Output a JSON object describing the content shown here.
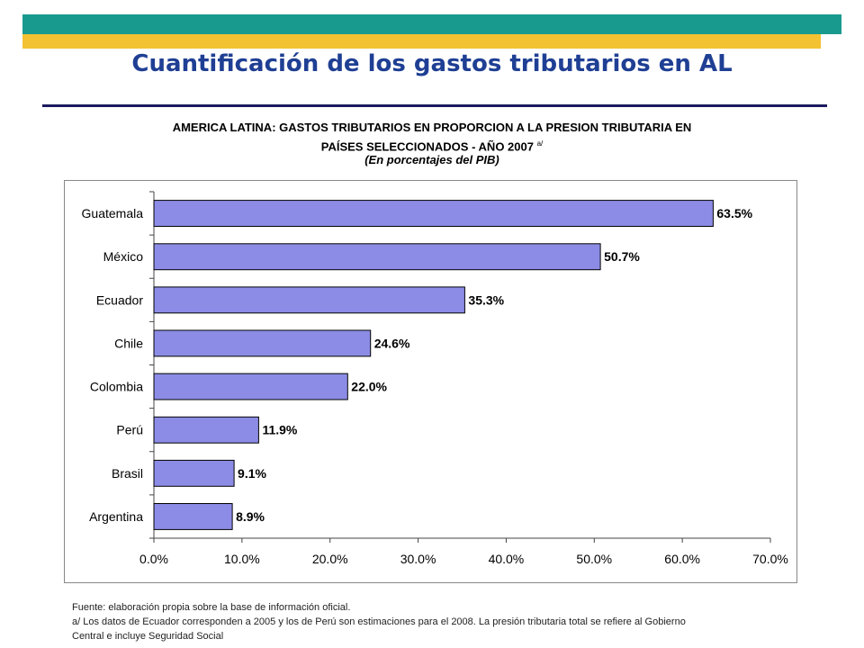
{
  "slide": {
    "title": "Cuantificación de los gastos tributarios en AL",
    "colors": {
      "band_teal": "#199a8e",
      "band_gold": "#f2c232",
      "title": "#1f3f94",
      "rule": "#1a1a5e"
    }
  },
  "chart_heading": {
    "line1": "AMERICA LATINA: GASTOS TRIBUTARIOS EN PROPORCION A LA PRESION TRIBUTARIA EN",
    "line2": "PAÍSES SELECCIONADOS - AÑO 2007",
    "line2_note": "a/",
    "line3": "(En porcentajes del PIB)"
  },
  "chart_data": {
    "type": "bar",
    "orientation": "horizontal",
    "categories": [
      "Guatemala",
      "México",
      "Ecuador",
      "Chile",
      "Colombia",
      "Perú",
      "Brasil",
      "Argentina"
    ],
    "values": [
      63.5,
      50.7,
      35.3,
      24.6,
      22.0,
      11.9,
      9.1,
      8.9
    ],
    "data_labels": [
      "63.5%",
      "50.7%",
      "35.3%",
      "24.6%",
      "22.0%",
      "11.9%",
      "9.1%",
      "8.9%"
    ],
    "xlim": [
      0,
      70
    ],
    "xticks": [
      "0.0%",
      "10.0%",
      "20.0%",
      "30.0%",
      "40.0%",
      "50.0%",
      "60.0%",
      "70.0%"
    ],
    "grid": false,
    "legend": "none",
    "bar_color": "#8c8ce6"
  },
  "footnotes": {
    "source": "Fuente: elaboración propia sobre la base de información oficial.",
    "note_line1": "a/ Los datos de Ecuador corresponden a 2005 y los de Perú son estimaciones para el 2008. La presión tributaria total se refiere al Gobierno",
    "note_line2": "Central e incluye Seguridad Social"
  }
}
